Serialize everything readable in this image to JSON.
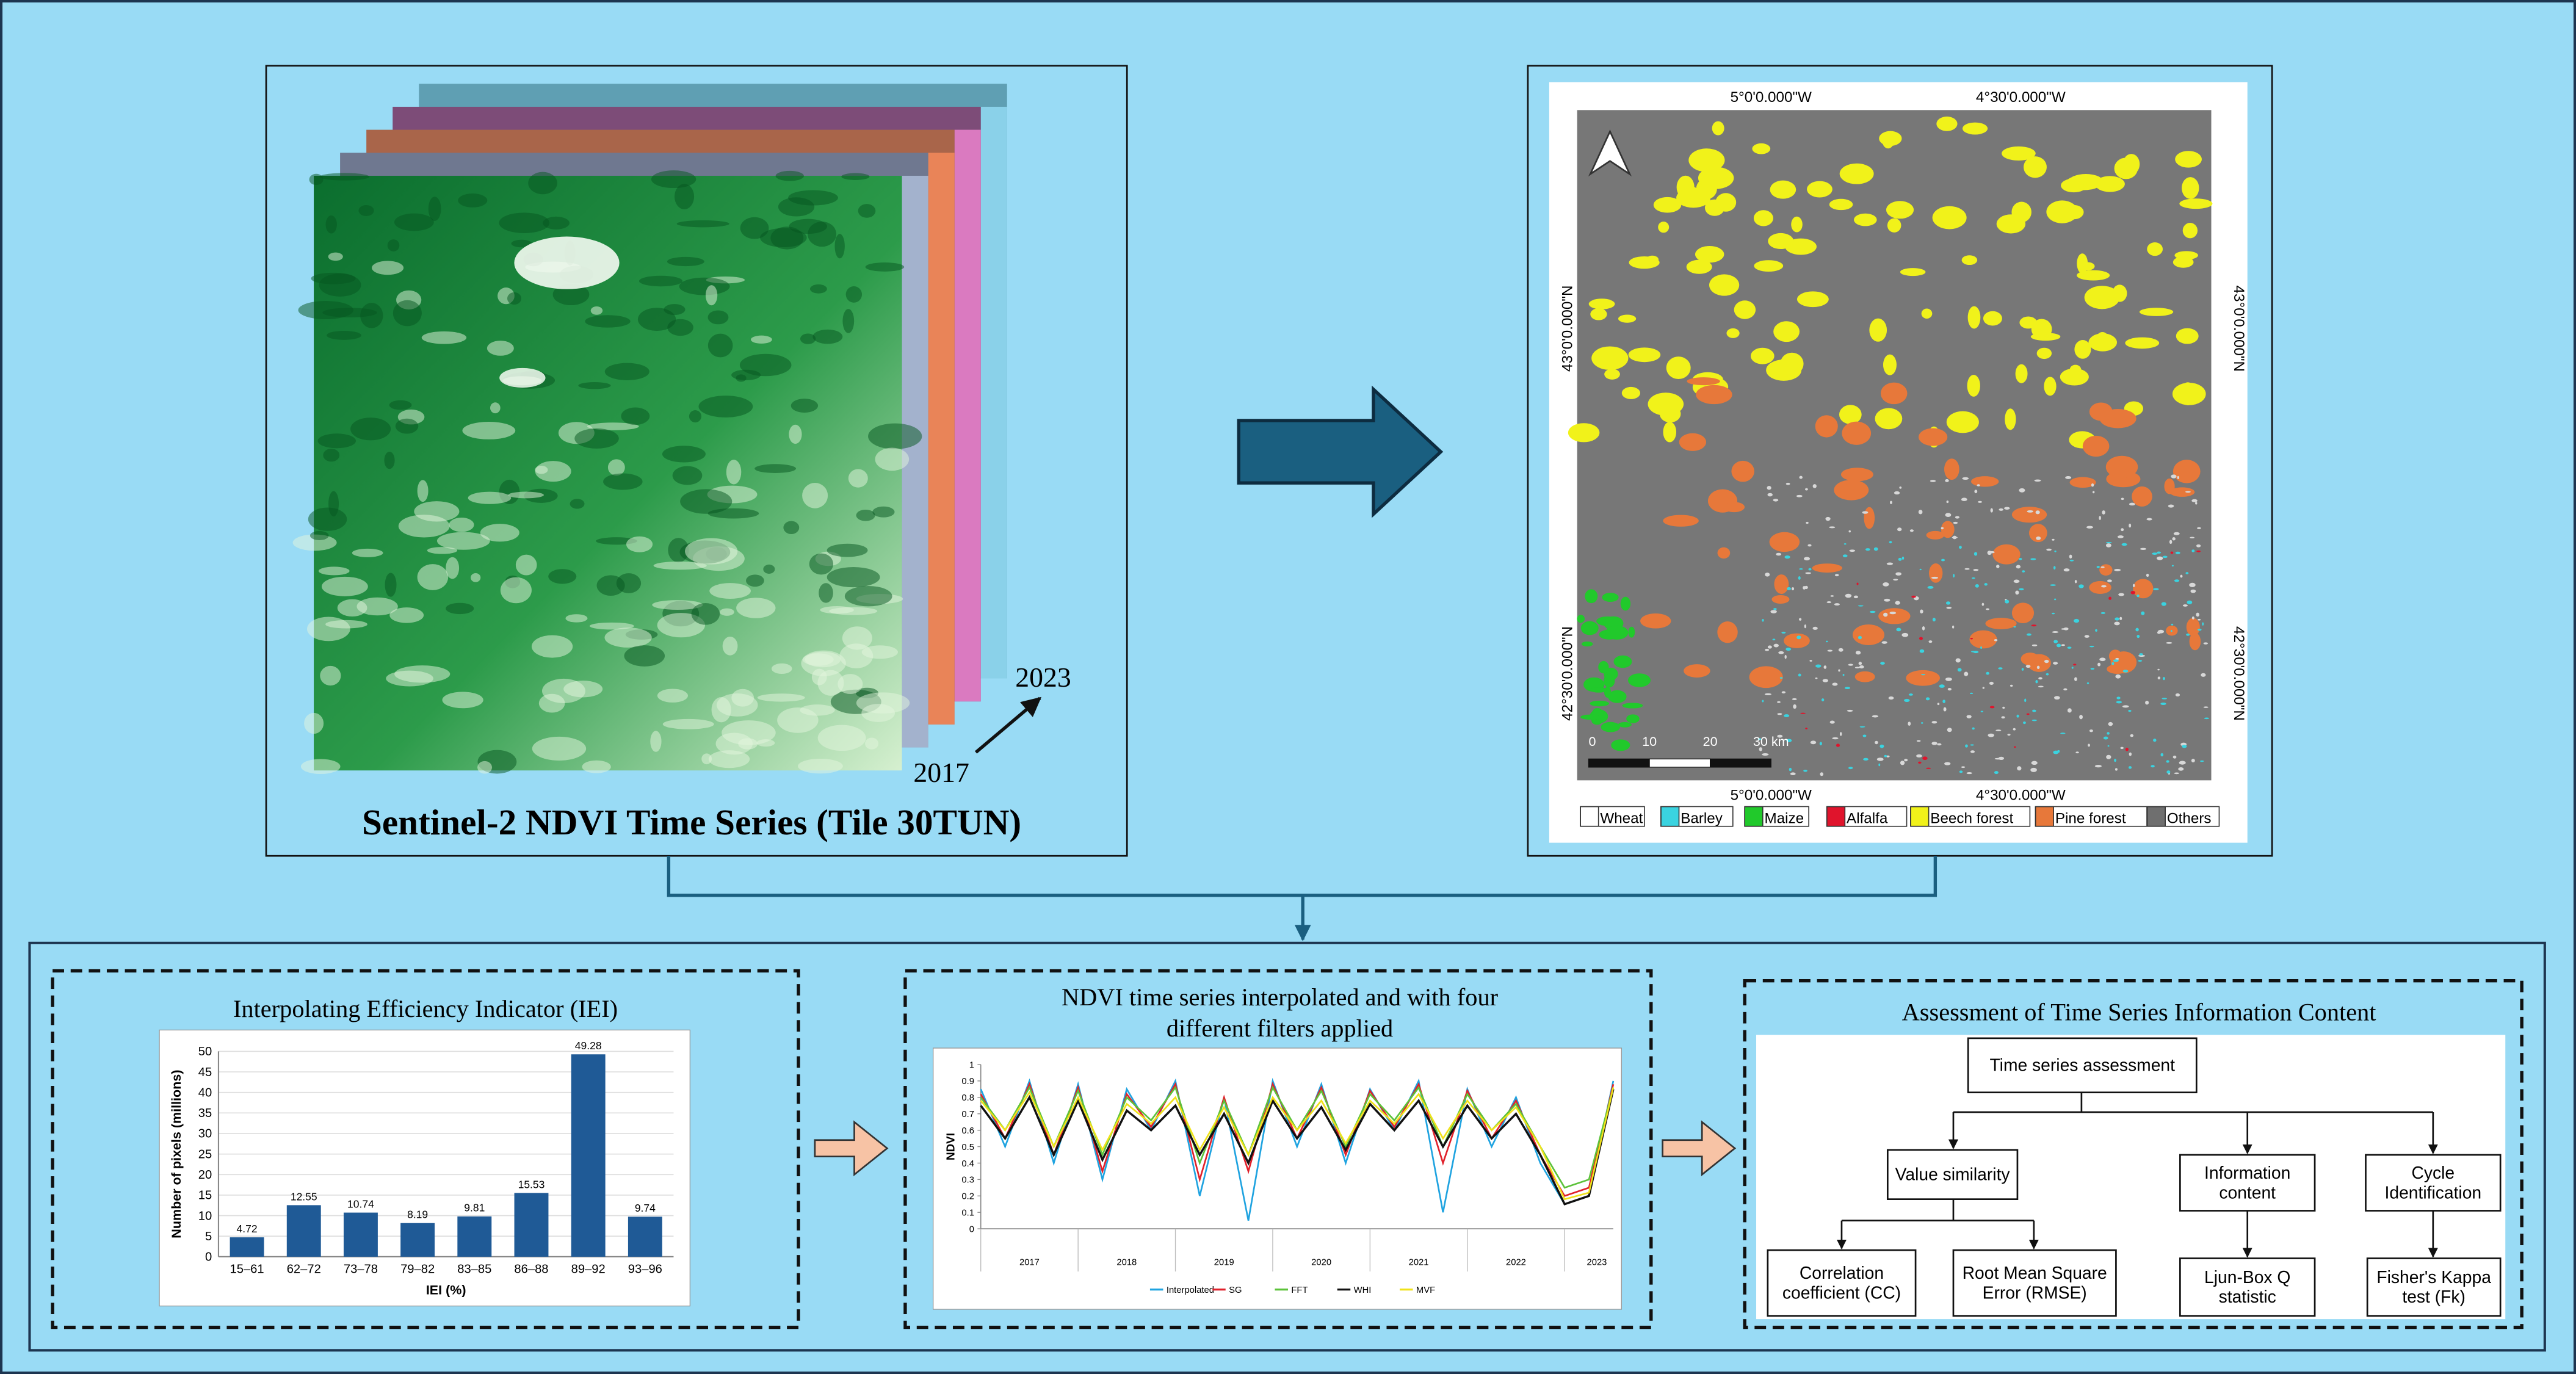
{
  "top_left": {
    "title": "Sentinel-2 NDVI Time Series (Tile 30TUN)",
    "start_year": "2017",
    "end_year": "2023"
  },
  "top_right": {
    "lon_labels": [
      "5°0'0.000\"W",
      "4°30'0.000\"W"
    ],
    "lat_labels": [
      "43°0'0.000\"N",
      "42°30'0.000\"N"
    ],
    "scale_labels": [
      "0",
      "10",
      "20",
      "30 km"
    ],
    "legend": [
      {
        "name": "Wheat",
        "color": "#ffffff"
      },
      {
        "name": "Barley",
        "color": "#3ad3e0"
      },
      {
        "name": "Maize",
        "color": "#21c92b"
      },
      {
        "name": "Alfalfa",
        "color": "#e0142c"
      },
      {
        "name": "Beech forest",
        "color": "#f1f21a"
      },
      {
        "name": "Pine forest",
        "color": "#e7783a"
      },
      {
        "name": "Others",
        "color": "#6f6f6f"
      }
    ]
  },
  "iei_panel": {
    "title": "Interpolating Efficiency Indicator (IEI)",
    "chart": {
      "type": "bar",
      "categories": [
        "15–61",
        "62–72",
        "73–78",
        "79–82",
        "83–85",
        "86–88",
        "89–92",
        "93–96"
      ],
      "values": [
        4.72,
        12.55,
        10.74,
        8.19,
        9.81,
        15.53,
        49.28,
        9.74
      ],
      "color": "#1f5a96",
      "ylim": [
        0,
        50
      ],
      "yticks": [
        0,
        5,
        10,
        15,
        20,
        25,
        30,
        35,
        40,
        45,
        50
      ],
      "grid": true,
      "y_label": "Number of pixels (millions)",
      "x_label": "IEI (%)"
    }
  },
  "ndvi_panel": {
    "title_lines": [
      "NDVI time series interpolated and with four",
      "different filters applied"
    ],
    "chart": {
      "type": "line",
      "y_label": "NDVI",
      "ylim": [
        0,
        1
      ],
      "yticks": [
        0,
        0.1,
        0.2,
        0.3,
        0.4,
        0.5,
        0.6,
        0.7,
        0.8,
        0.9,
        1
      ],
      "xlim": [
        2017,
        2023.5
      ],
      "year_labels": [
        "2017",
        "2018",
        "2019",
        "2020",
        "2021",
        "2022",
        "2023"
      ],
      "x": [
        2017,
        2017.25,
        2017.5,
        2017.75,
        2018,
        2018.25,
        2018.5,
        2018.75,
        2019,
        2019.25,
        2019.5,
        2019.75,
        2020,
        2020.25,
        2020.5,
        2020.75,
        2021,
        2021.25,
        2021.5,
        2021.75,
        2022,
        2022.25,
        2022.5,
        2022.75,
        2023,
        2023.25,
        2023.5
      ],
      "series": [
        {
          "name": "Interpolated",
          "color": "#1fa3e0",
          "values": [
            0.85,
            0.5,
            0.9,
            0.4,
            0.88,
            0.3,
            0.85,
            0.6,
            0.9,
            0.2,
            0.8,
            0.05,
            0.9,
            0.5,
            0.88,
            0.4,
            0.85,
            0.6,
            0.9,
            0.1,
            0.85,
            0.5,
            0.8,
            0.4,
            0.15,
            0.2,
            0.9
          ]
        },
        {
          "name": "SG",
          "color": "#e0202a",
          "values": [
            0.82,
            0.55,
            0.88,
            0.45,
            0.86,
            0.35,
            0.82,
            0.62,
            0.88,
            0.3,
            0.8,
            0.35,
            0.88,
            0.55,
            0.86,
            0.45,
            0.84,
            0.62,
            0.88,
            0.4,
            0.84,
            0.55,
            0.78,
            0.45,
            0.2,
            0.25,
            0.88
          ]
        },
        {
          "name": "FFT",
          "color": "#5cc23a",
          "values": [
            0.8,
            0.6,
            0.86,
            0.5,
            0.84,
            0.45,
            0.8,
            0.66,
            0.86,
            0.4,
            0.78,
            0.45,
            0.86,
            0.6,
            0.84,
            0.5,
            0.82,
            0.66,
            0.86,
            0.5,
            0.82,
            0.6,
            0.76,
            0.5,
            0.25,
            0.3,
            0.86
          ]
        },
        {
          "name": "WHI",
          "color": "#111111",
          "values": [
            0.75,
            0.55,
            0.8,
            0.45,
            0.78,
            0.42,
            0.72,
            0.6,
            0.75,
            0.45,
            0.7,
            0.4,
            0.78,
            0.55,
            0.74,
            0.48,
            0.76,
            0.6,
            0.78,
            0.5,
            0.75,
            0.55,
            0.7,
            0.45,
            0.15,
            0.2,
            0.85
          ]
        },
        {
          "name": "MVF",
          "color": "#f0e21a",
          "values": [
            0.78,
            0.6,
            0.83,
            0.5,
            0.8,
            0.48,
            0.76,
            0.64,
            0.8,
            0.48,
            0.74,
            0.45,
            0.8,
            0.6,
            0.78,
            0.52,
            0.78,
            0.64,
            0.82,
            0.55,
            0.78,
            0.6,
            0.74,
            0.5,
            0.18,
            0.22,
            0.86
          ]
        }
      ]
    }
  },
  "assessment_panel": {
    "title": "Assessment of Time Series Information Content",
    "nodes": [
      {
        "lines": [
          "Time series assessment"
        ]
      },
      {
        "lines": [
          "Value similarity"
        ]
      },
      {
        "lines": [
          "Information",
          "content"
        ]
      },
      {
        "lines": [
          "Cycle",
          "Identification"
        ]
      },
      {
        "lines": [
          "Correlation",
          "coefficient (CC)"
        ]
      },
      {
        "lines": [
          "Root Mean Square",
          "Error (RMSE)"
        ]
      },
      {
        "lines": [
          "Ljun-Box Q",
          "statistic"
        ]
      },
      {
        "lines": [
          "Fisher's Kappa",
          "test (Fk)"
        ]
      }
    ]
  }
}
